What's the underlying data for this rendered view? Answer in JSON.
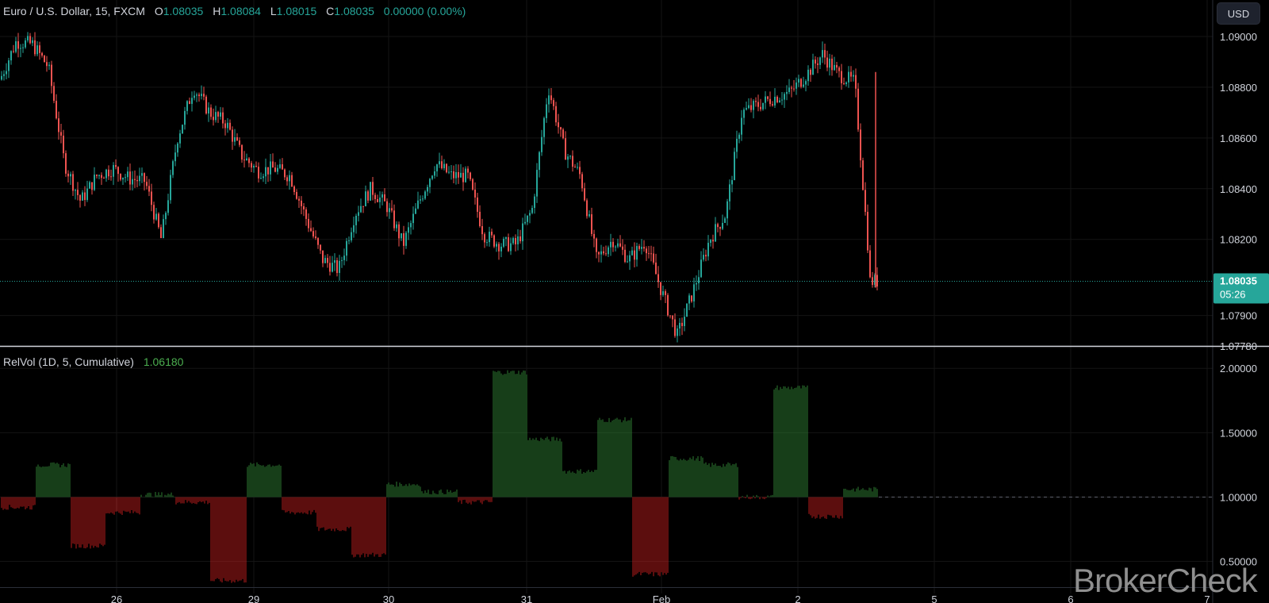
{
  "legend": {
    "symbol": "Euro / U.S. Dollar, 15, FXCM",
    "o_label": "O",
    "o_value": "1.08035",
    "h_label": "H",
    "h_value": "1.08084",
    "l_label": "L",
    "l_value": "1.08015",
    "c_label": "C",
    "c_value": "1.08035",
    "change": "0.00000 (0.00%)"
  },
  "indicator_legend": {
    "name": "RelVol (1D, 5, Cumulative)",
    "value": "1.06180"
  },
  "currency_button": "USD",
  "last_price_label": {
    "price": "1.08035",
    "countdown": "05:26"
  },
  "watermark": "BrokerCheck",
  "colors": {
    "background": "#000000",
    "up": "#26a69a",
    "down": "#ef5350",
    "vol_up": "#2e7d32",
    "vol_down": "#b71c1c",
    "price_line": "#26a69a",
    "grid": "#141414",
    "axis_text": "#d1d4dc",
    "separator": "#d1d4dc"
  },
  "chart_data": [
    {
      "type": "candlestick",
      "title": "Euro / U.S. Dollar, 15, FXCM",
      "y_axis_ticks": [
        "1.07780",
        "1.07900",
        "1.08200",
        "1.08400",
        "1.08600",
        "1.08800",
        "1.09000"
      ],
      "y_tick_values": [
        1.0778,
        1.079,
        1.082,
        1.084,
        1.086,
        1.088,
        1.09
      ],
      "ylim": [
        1.0778,
        1.0905
      ],
      "x_tick_labels": [
        "26",
        "29",
        "30",
        "31",
        "Feb",
        "2",
        "5",
        "6",
        "7"
      ],
      "last_price": 1.08035,
      "grid": true,
      "price_path_keypoints": [
        {
          "x": "25 Jan",
          "y": 1.0883
        },
        {
          "x": "25 Jan",
          "y": 1.0898
        },
        {
          "x": "25 Jan",
          "y": 1.0897
        },
        {
          "x": "25 Jan",
          "y": 1.0888
        },
        {
          "x": "25 Jan",
          "y": 1.085
        },
        {
          "x": "25 Jan",
          "y": 1.0835
        },
        {
          "x": "25 Jan",
          "y": 1.0845
        },
        {
          "x": "26 Jan",
          "y": 1.0848
        },
        {
          "x": "26 Jan",
          "y": 1.0844
        },
        {
          "x": "26 Jan",
          "y": 1.0843
        },
        {
          "x": "26 Jan",
          "y": 1.082
        },
        {
          "x": "26 Jan",
          "y": 1.086
        },
        {
          "x": "26 Jan",
          "y": 1.088
        },
        {
          "x": "26 Jan",
          "y": 1.087
        },
        {
          "x": "26 Jan",
          "y": 1.0866
        },
        {
          "x": "26 Jan",
          "y": 1.0853
        },
        {
          "x": "29 Jan",
          "y": 1.0847
        },
        {
          "x": "29 Jan",
          "y": 1.0848
        },
        {
          "x": "29 Jan",
          "y": 1.0845
        },
        {
          "x": "29 Jan",
          "y": 1.0828
        },
        {
          "x": "29 Jan",
          "y": 1.0812
        },
        {
          "x": "29 Jan",
          "y": 1.0808
        },
        {
          "x": "29 Jan",
          "y": 1.083
        },
        {
          "x": "29 Jan",
          "y": 1.084
        },
        {
          "x": "30 Jan",
          "y": 1.0833
        },
        {
          "x": "30 Jan",
          "y": 1.0818
        },
        {
          "x": "30 Jan",
          "y": 1.0835
        },
        {
          "x": "30 Jan",
          "y": 1.085
        },
        {
          "x": "30 Jan",
          "y": 1.0845
        },
        {
          "x": "30 Jan",
          "y": 1.0845
        },
        {
          "x": "30 Jan",
          "y": 1.0822
        },
        {
          "x": "30 Jan",
          "y": 1.0818
        },
        {
          "x": "31 Jan",
          "y": 1.0818
        },
        {
          "x": "31 Jan",
          "y": 1.0832
        },
        {
          "x": "31 Jan",
          "y": 1.088
        },
        {
          "x": "31 Jan",
          "y": 1.0855
        },
        {
          "x": "31 Jan",
          "y": 1.0845
        },
        {
          "x": "31 Jan",
          "y": 1.0812
        },
        {
          "x": "31 Jan",
          "y": 1.082
        },
        {
          "x": "1 Feb",
          "y": 1.0812
        },
        {
          "x": "1 Feb",
          "y": 1.0819
        },
        {
          "x": "1 Feb",
          "y": 1.08
        },
        {
          "x": "1 Feb",
          "y": 1.0782
        },
        {
          "x": "1 Feb",
          "y": 1.08
        },
        {
          "x": "1 Feb",
          "y": 1.082
        },
        {
          "x": "1 Feb",
          "y": 1.083
        },
        {
          "x": "1 Feb",
          "y": 1.087
        },
        {
          "x": "1 Feb",
          "y": 1.0873
        },
        {
          "x": "2 Feb",
          "y": 1.0876
        },
        {
          "x": "2 Feb",
          "y": 1.0878
        },
        {
          "x": "2 Feb",
          "y": 1.0885
        },
        {
          "x": "2 Feb",
          "y": 1.0893
        },
        {
          "x": "2 Feb",
          "y": 1.0885
        },
        {
          "x": "2 Feb",
          "y": 1.0882
        },
        {
          "x": "2 Feb",
          "y": 1.0803
        }
      ]
    },
    {
      "type": "bar",
      "title": "RelVol (1D, 5, Cumulative)",
      "y_axis_ticks": [
        "0.50000",
        "1.00000",
        "1.50000",
        "2.00000"
      ],
      "y_tick_values": [
        0.5,
        1.0,
        1.5,
        2.0
      ],
      "ylim": [
        0.3,
        2.1
      ],
      "baseline": 1.0,
      "last_value": 1.0618,
      "grid": true,
      "segments": [
        {
          "x_from": "25 Jan",
          "x_to": "25 Jan",
          "value": 0.92
        },
        {
          "x_from": "25 Jan",
          "x_to": "26 Jan",
          "value": 1.25
        },
        {
          "x_from": "26 Jan",
          "x_to": "26 Jan",
          "value": 0.62
        },
        {
          "x_from": "26 Jan",
          "x_to": "26 Jan",
          "value": 0.88
        },
        {
          "x_from": "26 Jan",
          "x_to": "26 Jan",
          "value": 1.02
        },
        {
          "x_from": "26 Jan",
          "x_to": "26 Jan",
          "value": 0.96
        },
        {
          "x_from": "29 Jan",
          "x_to": "29 Jan",
          "value": 0.35
        },
        {
          "x_from": "29 Jan",
          "x_to": "29 Jan",
          "value": 1.25
        },
        {
          "x_from": "29 Jan",
          "x_to": "29 Jan",
          "value": 0.88
        },
        {
          "x_from": "29 Jan",
          "x_to": "30 Jan",
          "value": 0.75
        },
        {
          "x_from": "30 Jan",
          "x_to": "30 Jan",
          "value": 0.55
        },
        {
          "x_from": "30 Jan",
          "x_to": "30 Jan",
          "value": 1.1
        },
        {
          "x_from": "30 Jan",
          "x_to": "30 Jan",
          "value": 1.04
        },
        {
          "x_from": "30 Jan",
          "x_to": "31 Jan",
          "value": 0.96
        },
        {
          "x_from": "31 Jan",
          "x_to": "31 Jan",
          "value": 1.97
        },
        {
          "x_from": "31 Jan",
          "x_to": "31 Jan",
          "value": 1.45
        },
        {
          "x_from": "31 Jan",
          "x_to": "31 Jan",
          "value": 1.2
        },
        {
          "x_from": "31 Jan",
          "x_to": "31 Jan",
          "value": 1.6
        },
        {
          "x_from": "1 Feb",
          "x_to": "1 Feb",
          "value": 0.4
        },
        {
          "x_from": "1 Feb",
          "x_to": "1 Feb",
          "value": 1.3
        },
        {
          "x_from": "1 Feb",
          "x_to": "1 Feb",
          "value": 1.25
        },
        {
          "x_from": "1 Feb",
          "x_to": "1 Feb",
          "value": 1.0
        },
        {
          "x_from": "2 Feb",
          "x_to": "2 Feb",
          "value": 1.85
        },
        {
          "x_from": "2 Feb",
          "x_to": "2 Feb",
          "value": 0.85
        },
        {
          "x_from": "2 Feb",
          "x_to": "2 Feb",
          "value": 1.06
        }
      ]
    }
  ]
}
